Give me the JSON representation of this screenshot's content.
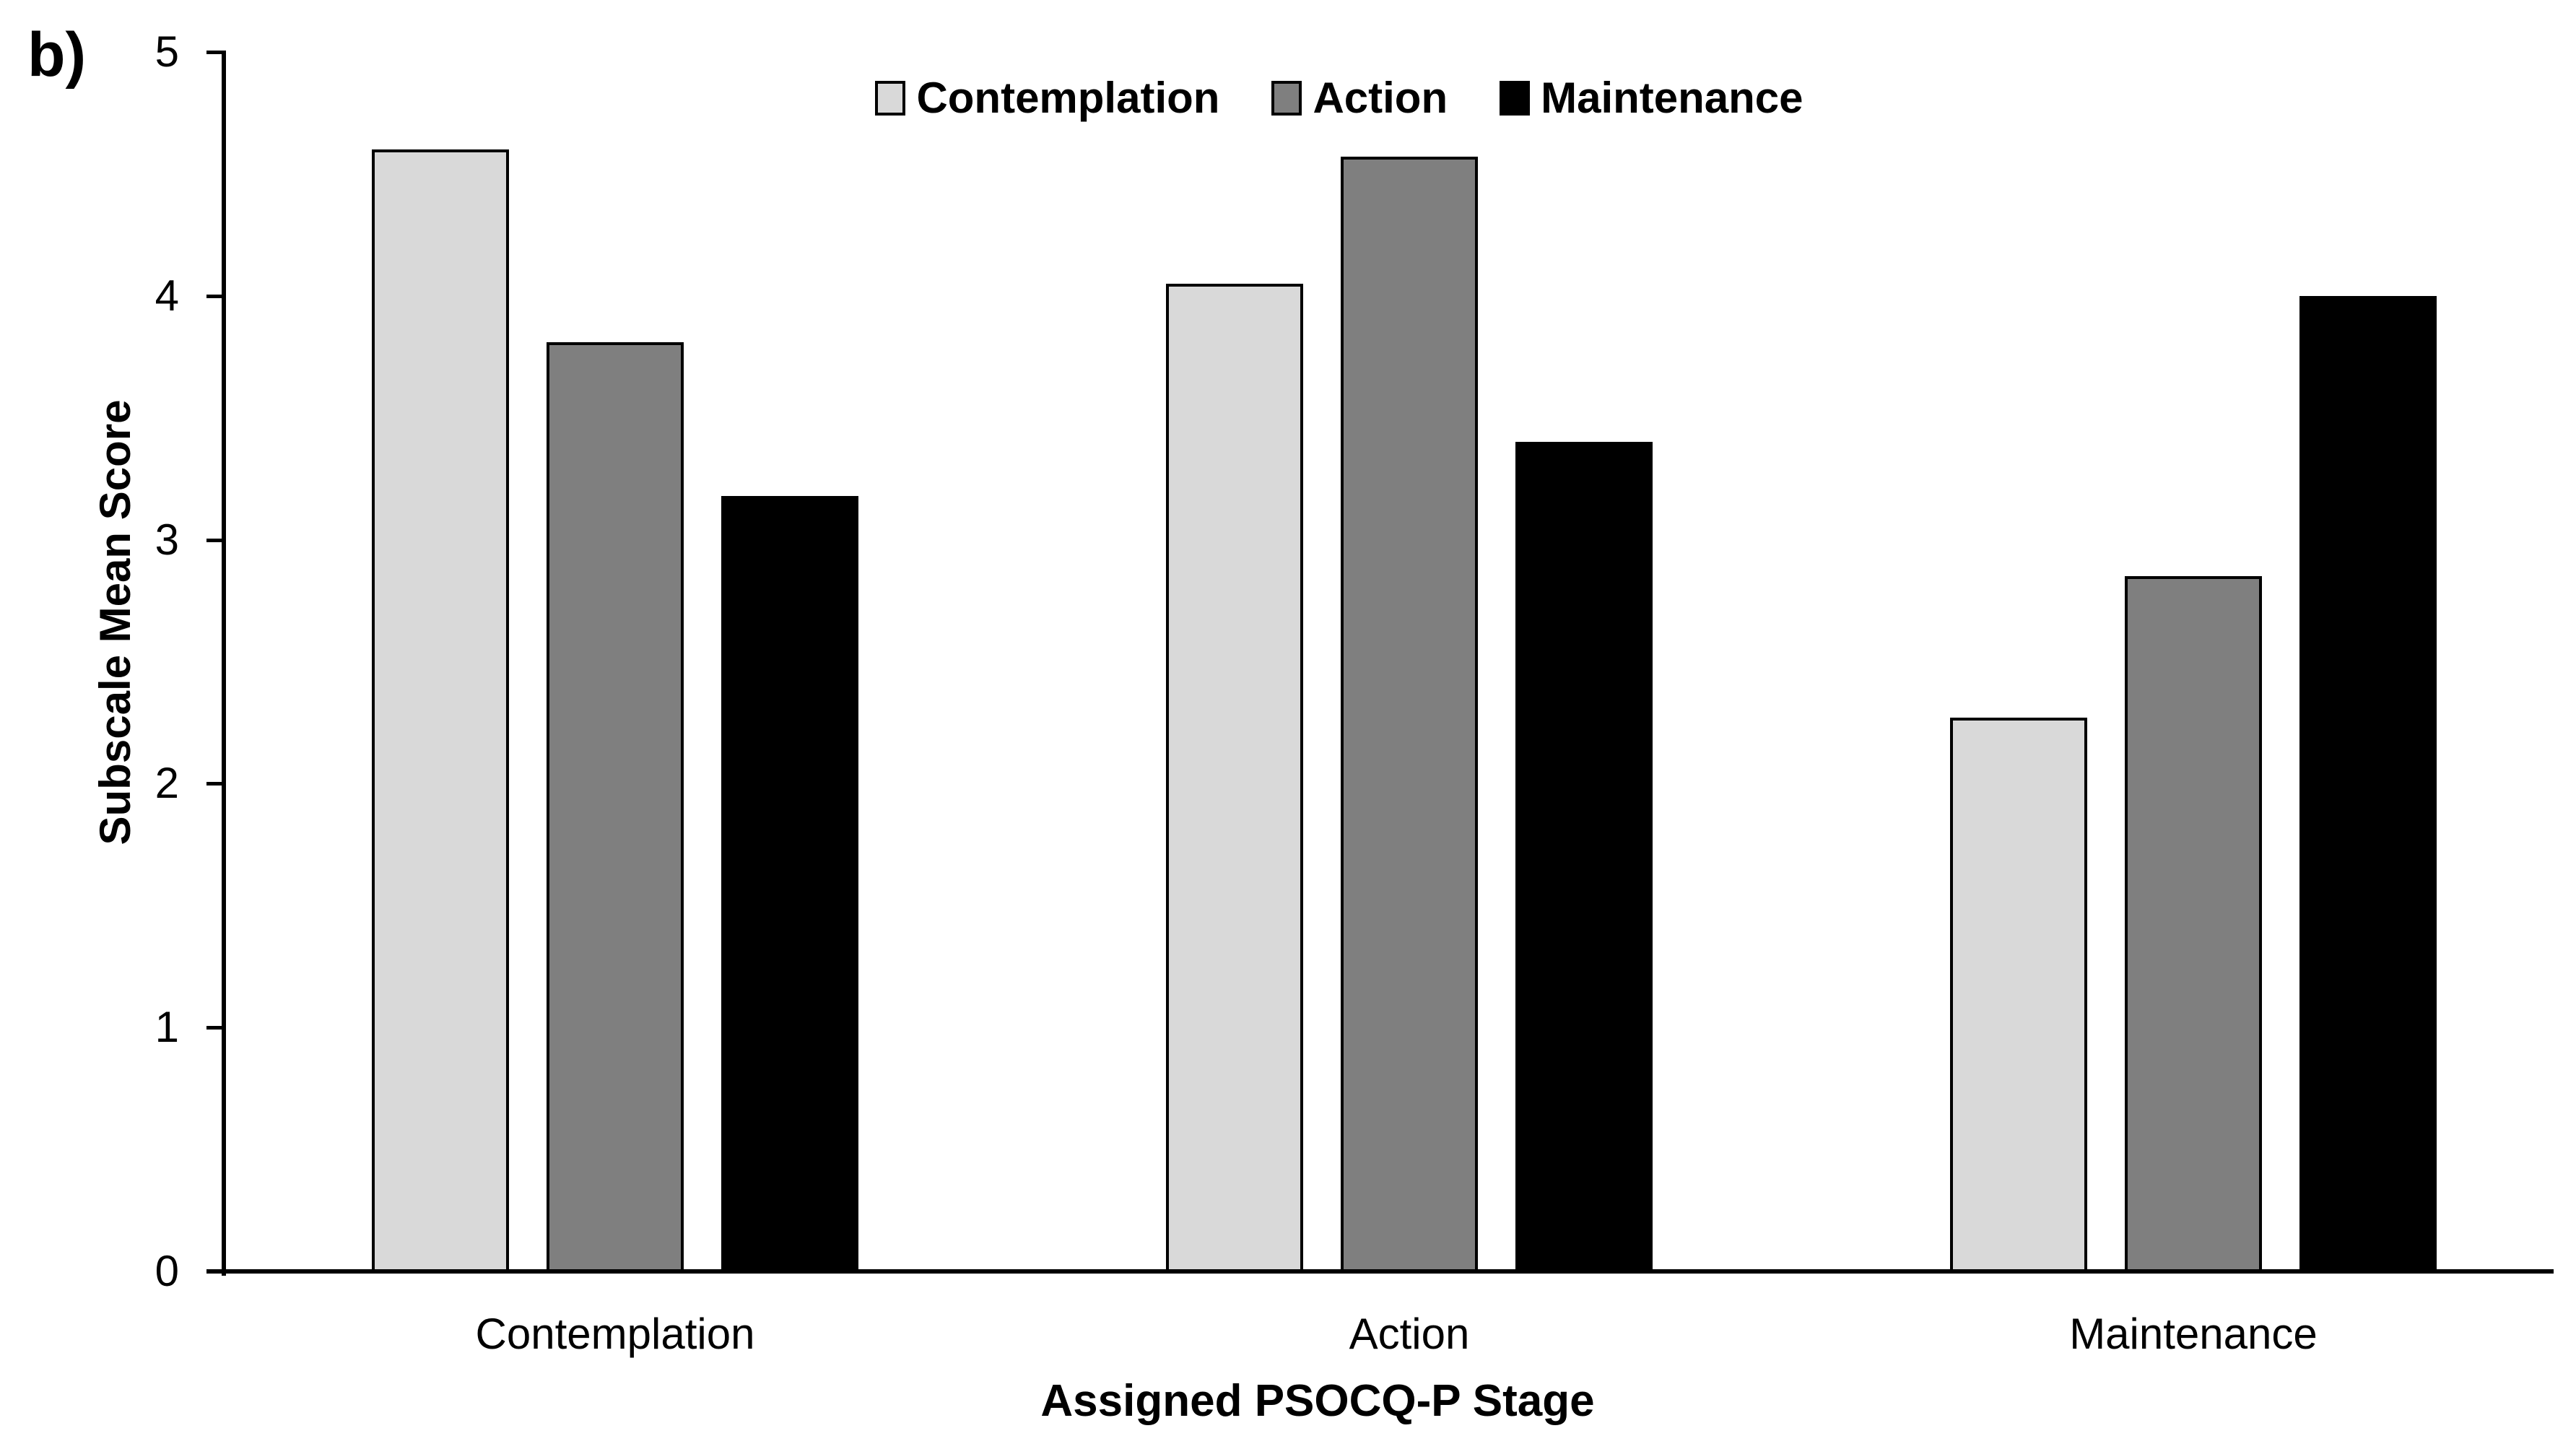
{
  "figure_label": "b)",
  "chart_data": {
    "type": "bar",
    "title": "",
    "categories": [
      "Contemplation",
      "Action",
      "Maintenance"
    ],
    "series": [
      {
        "name": "Contemplation",
        "color": "#d9d9d9",
        "values": [
          4.6,
          4.05,
          2.27
        ]
      },
      {
        "name": "Action",
        "color": "#7f7f7f",
        "values": [
          3.81,
          4.57,
          2.85
        ]
      },
      {
        "name": "Maintenance",
        "color": "#000000",
        "values": [
          3.18,
          3.4,
          4.0
        ]
      }
    ],
    "xlabel": "Assigned PSOCQ-P Stage",
    "ylabel": "Subscale Mean Score",
    "ylim": [
      0,
      5
    ],
    "yticks": [
      0,
      1,
      2,
      3,
      4,
      5
    ],
    "grid": false,
    "legend_position": "top",
    "bar_border_color": "#000000",
    "axis_color": "#000000",
    "background_color": "#ffffff"
  }
}
